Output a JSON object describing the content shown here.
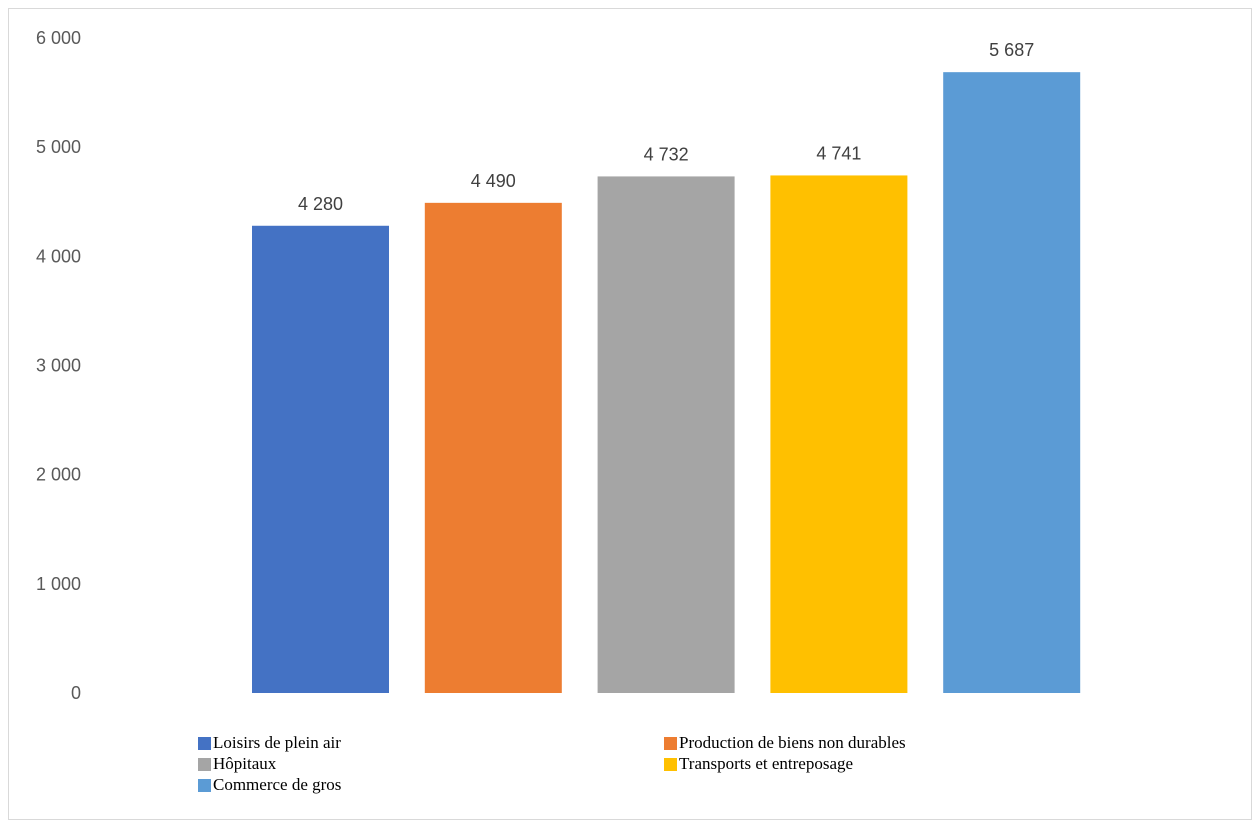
{
  "chart_data": {
    "type": "bar",
    "categories": [
      "Loisirs de plein air",
      "Production de biens non durables",
      "Hôpitaux",
      "Transports et entreposage",
      "Commerce de gros"
    ],
    "values": [
      4280,
      4490,
      4732,
      4741,
      5687
    ],
    "value_labels": [
      "4 280",
      "4 490",
      "4 732",
      "4 741",
      "5 687"
    ],
    "colors": [
      "#4472c4",
      "#ed7d31",
      "#a5a5a5",
      "#ffc000",
      "#5b9bd5"
    ],
    "ylim": [
      0,
      6000
    ],
    "yticks": [
      0,
      1000,
      2000,
      3000,
      4000,
      5000,
      6000
    ],
    "ytick_labels": [
      "0",
      "1 000",
      "2 000",
      "3 000",
      "4 000",
      "5 000",
      "6 000"
    ],
    "title": "",
    "xlabel": "",
    "ylabel": "",
    "grid": false,
    "legend_position": "bottom"
  }
}
